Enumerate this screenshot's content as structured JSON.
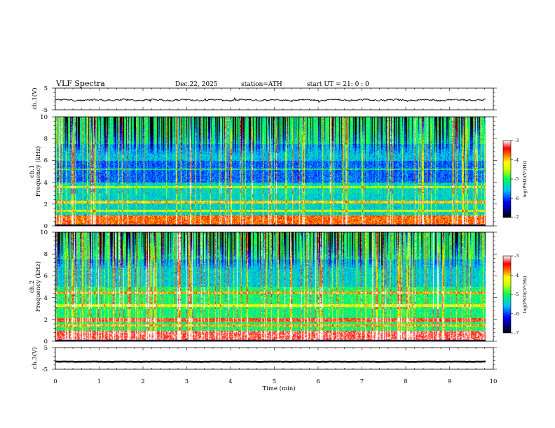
{
  "header": {
    "title": "VLF  Spectra",
    "date": "Dec.22, 2025",
    "station": "station=ATH",
    "start": "start  UT  =    21: 0   : 0"
  },
  "chart_data": {
    "type": "spectrogram",
    "xlabel": "Time  (min)",
    "xlim": [
      0,
      10
    ],
    "x_ticks": [
      "0",
      "1",
      "2",
      "3",
      "4",
      "5",
      "6",
      "7",
      "8",
      "9",
      "10"
    ],
    "panels": [
      {
        "id": "ch1-waveform",
        "type": "line",
        "ylabel": "ch.1(V)",
        "ylim": [
          -5,
          5
        ],
        "y_ticks": [
          "5",
          "-5"
        ],
        "series": {
          "name": "ch.1",
          "mean": -0.5,
          "amplitude": 0.6,
          "color": "#000000"
        }
      },
      {
        "id": "ch1-spectrogram",
        "type": "heatmap",
        "ylabel_channel": "ch.1",
        "ylabel": "Frequency  (kHz)",
        "ylim": [
          0,
          10
        ],
        "y_ticks": [
          "0",
          "2",
          "4",
          "6",
          "8",
          "10"
        ],
        "colorbar": {
          "label": "log(PSD)(V²/Hz)",
          "range": [
            -7,
            -3
          ],
          "ticks": [
            "-3",
            "-4",
            "-5",
            "-6",
            "-7"
          ]
        }
      },
      {
        "id": "ch2-spectrogram",
        "type": "heatmap",
        "ylabel_channel": "ch.2",
        "ylabel": "Frequency  (kHz)",
        "ylim": [
          0,
          10
        ],
        "y_ticks": [
          "0",
          "2",
          "4",
          "6",
          "8",
          "10"
        ],
        "colorbar": {
          "label": "log(PSD)(V²/Hz)",
          "range": [
            -7,
            -3
          ],
          "ticks": [
            "-3",
            "-4",
            "-5",
            "-6",
            "-7"
          ]
        }
      },
      {
        "id": "ch3-waveform",
        "type": "line",
        "ylabel": "ch.3(V)",
        "ylim": [
          -5,
          5
        ],
        "y_ticks": [
          "5",
          "-5"
        ],
        "series": {
          "name": "ch.3",
          "mean": -1.5,
          "amplitude": 0.1,
          "color": "#000000"
        }
      }
    ],
    "data_end_min": 9.82
  }
}
